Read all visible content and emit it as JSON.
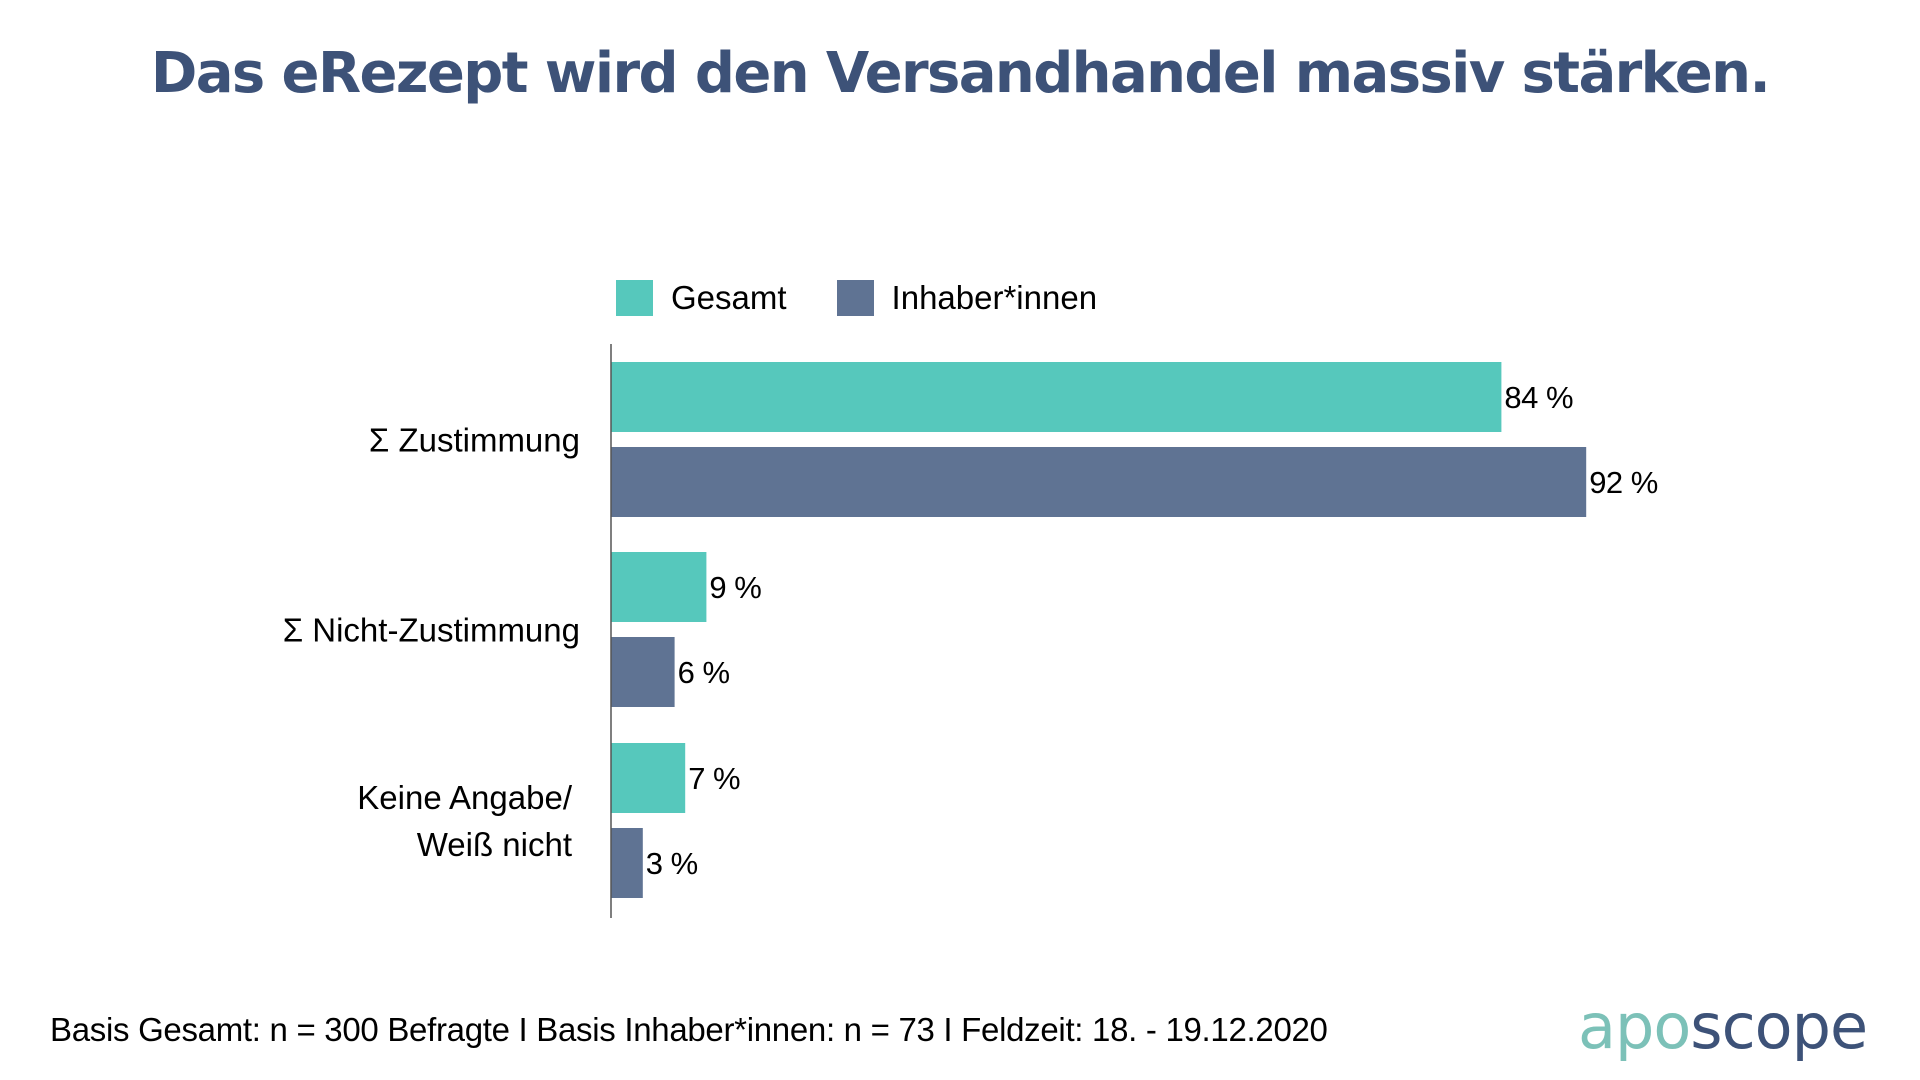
{
  "title": "Das eRezept wird den Versandhandel massiv stärken.",
  "colors": {
    "title": "#3d5278",
    "gesamt": "#56c8bc",
    "inhaber": "#5f7393",
    "axis": "#555555",
    "logo_apo": "#7cc1b8",
    "logo_scope": "#3d5278"
  },
  "legend": [
    {
      "label": "Gesamt",
      "color": "#56c8bc"
    },
    {
      "label": "Inhaber*innen",
      "color": "#5f7393"
    }
  ],
  "chart_data": {
    "type": "bar",
    "orientation": "horizontal",
    "title": "Das eRezept wird den Versandhandel massiv stärken.",
    "xlabel": "",
    "ylabel": "",
    "unit": "%",
    "xlim": [
      0,
      100
    ],
    "grid": false,
    "legend_position": "top",
    "categories": [
      [
        "Σ Zustimmung"
      ],
      [
        "Σ Nicht-Zustimmung"
      ],
      [
        "Keine Angabe/",
        "Weiß nicht"
      ]
    ],
    "category_names": [
      "Σ Zustimmung",
      "Σ Nicht-Zustimmung",
      "Keine Angabe/ Weiß nicht"
    ],
    "series": [
      {
        "name": "Gesamt",
        "color": "#56c8bc",
        "values": [
          84,
          9,
          7
        ],
        "labels": [
          "84 %",
          "9 %",
          "7 %"
        ]
      },
      {
        "name": "Inhaber*innen",
        "color": "#5f7393",
        "values": [
          92,
          6,
          3
        ],
        "labels": [
          "92 %",
          "6 %",
          "3 %"
        ]
      }
    ]
  },
  "footer": {
    "text": "Basis Gesamt: n = 300 Befragte I Basis Inhaber*innen: n = 73 I Feldzeit: 18. - 19.12.2020"
  },
  "logo": {
    "part1": "apo",
    "part2": "scope"
  }
}
